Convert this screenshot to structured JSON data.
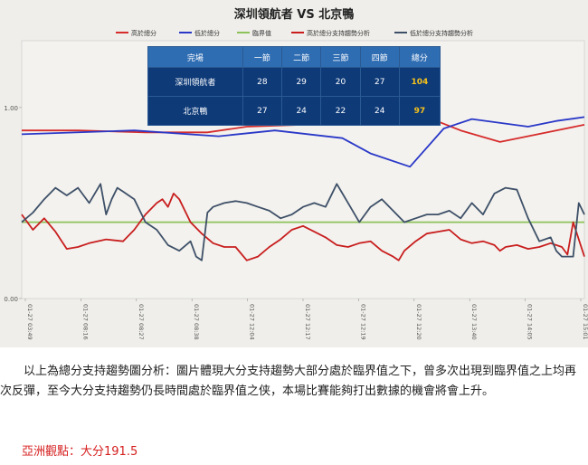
{
  "chart_data": {
    "type": "line",
    "title": "深圳領航者 VS 北京鴨",
    "legend_position": "top",
    "grid": false,
    "yticks": [
      "0.00",
      "1.00"
    ],
    "ylim": [
      0,
      1.35
    ],
    "x_tick_labels": [
      "01-27 03:49",
      "01-27 08:16",
      "01-27 08:27",
      "01-27 08:38",
      "01-27 12:04",
      "01-27 12:17",
      "01-27 12:19",
      "01-27 12:20",
      "01-27 13:40",
      "01-27 14:05",
      "01-27 15:01"
    ],
    "x_range": [
      0,
      100
    ],
    "series": [
      {
        "name": "高於總分",
        "color": "#d62c2c",
        "x": [
          0,
          10,
          22,
          33,
          40,
          50,
          60,
          72,
          78,
          85,
          95,
          100
        ],
        "y": [
          0.88,
          0.88,
          0.87,
          0.87,
          0.9,
          0.91,
          0.93,
          0.95,
          0.88,
          0.82,
          0.88,
          0.91
        ]
      },
      {
        "name": "低於總分",
        "color": "#2a38c8",
        "x": [
          0,
          20,
          35,
          45,
          57,
          62,
          69,
          75,
          80,
          90,
          95,
          100
        ],
        "y": [
          0.86,
          0.88,
          0.85,
          0.88,
          0.84,
          0.76,
          0.69,
          0.89,
          0.94,
          0.9,
          0.93,
          0.95
        ]
      },
      {
        "name": "臨界值",
        "color": "#8dc25a",
        "x": [
          0,
          100
        ],
        "y": [
          0.4,
          0.4
        ]
      },
      {
        "name": "高於總分支持趨勢分析",
        "color": "#c81e1e",
        "x": [
          0,
          2,
          4,
          6,
          8,
          10,
          12,
          15,
          18,
          20,
          22,
          24,
          25,
          26,
          27,
          28,
          30,
          32,
          34,
          36,
          38,
          40,
          42,
          44,
          46,
          48,
          50,
          52,
          54,
          56,
          58,
          60,
          62,
          64,
          66,
          67,
          68,
          70,
          72,
          74,
          76,
          78,
          80,
          82,
          84,
          85,
          86,
          88,
          90,
          92,
          94,
          96,
          97,
          98,
          100
        ],
        "y": [
          0.44,
          0.36,
          0.42,
          0.35,
          0.26,
          0.27,
          0.29,
          0.31,
          0.3,
          0.36,
          0.44,
          0.5,
          0.52,
          0.48,
          0.55,
          0.52,
          0.4,
          0.34,
          0.29,
          0.27,
          0.27,
          0.2,
          0.22,
          0.27,
          0.31,
          0.36,
          0.38,
          0.35,
          0.32,
          0.28,
          0.27,
          0.29,
          0.3,
          0.25,
          0.22,
          0.2,
          0.25,
          0.3,
          0.34,
          0.35,
          0.36,
          0.31,
          0.29,
          0.3,
          0.28,
          0.25,
          0.27,
          0.28,
          0.26,
          0.27,
          0.29,
          0.27,
          0.23,
          0.4,
          0.22
        ]
      },
      {
        "name": "低於總分支持趨勢分析",
        "color": "#3e5068",
        "x": [
          0,
          2,
          4,
          6,
          8,
          10,
          12,
          14,
          15,
          16,
          17,
          18,
          20,
          22,
          24,
          26,
          28,
          30,
          31,
          32,
          33,
          34,
          36,
          38,
          40,
          42,
          44,
          46,
          48,
          50,
          52,
          54,
          56,
          58,
          60,
          62,
          64,
          66,
          68,
          70,
          72,
          74,
          76,
          78,
          80,
          82,
          84,
          86,
          88,
          90,
          92,
          94,
          95,
          96,
          97,
          98,
          99,
          100
        ],
        "y": [
          0.4,
          0.45,
          0.52,
          0.58,
          0.54,
          0.58,
          0.5,
          0.6,
          0.44,
          0.52,
          0.58,
          0.56,
          0.52,
          0.4,
          0.36,
          0.28,
          0.25,
          0.3,
          0.22,
          0.2,
          0.45,
          0.48,
          0.5,
          0.51,
          0.5,
          0.48,
          0.46,
          0.42,
          0.44,
          0.48,
          0.5,
          0.48,
          0.6,
          0.5,
          0.4,
          0.48,
          0.52,
          0.46,
          0.4,
          0.42,
          0.44,
          0.44,
          0.46,
          0.42,
          0.5,
          0.44,
          0.55,
          0.58,
          0.57,
          0.42,
          0.3,
          0.32,
          0.25,
          0.22,
          0.22,
          0.22,
          0.5,
          0.44
        ]
      }
    ]
  },
  "scoreboard": {
    "headers": [
      "完場",
      "一節",
      "二節",
      "三節",
      "四節",
      "總分"
    ],
    "rows": [
      {
        "team": "深圳領航者",
        "scores": [
          "28",
          "29",
          "20",
          "27"
        ],
        "total": "104"
      },
      {
        "team": "北京鴨",
        "scores": [
          "27",
          "24",
          "22",
          "24"
        ],
        "total": "97"
      }
    ]
  },
  "analysis_text": "以上為總分支持趨勢圖分析：圖片體現大分支持趨勢大部分處於臨界值之下，曾多次出現到臨界值之上均再次反彈，至今大分支持趨勢仍長時間處於臨界值之侠，本場比賽能夠打出數據的機會將會上升。",
  "view_text": "亞洲觀點：大分191.5"
}
